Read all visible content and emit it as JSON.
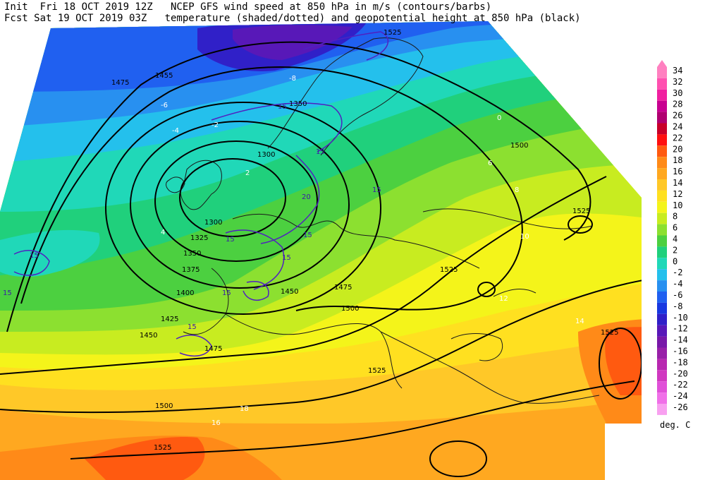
{
  "header": {
    "line1": "Init  Fri 18 OCT 2019 12Z   NCEP GFS wind speed at 850 hPa in m/s (contours/barbs)",
    "line2": "Fcst Sat 19 OCT 2019 03Z   temperature (shaded/dotted) and geopotential height at 850 hPa (black)"
  },
  "legend": {
    "unit": "deg. C",
    "levels": [
      "34",
      "32",
      "30",
      "28",
      "26",
      "24",
      "22",
      "20",
      "18",
      "16",
      "14",
      "12",
      "10",
      "8",
      "6",
      "4",
      "2",
      "0",
      "-2",
      "-4",
      "-6",
      "-8",
      "-10",
      "-12",
      "-14",
      "-16",
      "-18",
      "-20",
      "-22",
      "-24",
      "-26"
    ],
    "colors": [
      "#ff80c0",
      "#ff50b0",
      "#f020a0",
      "#c80090",
      "#b00070",
      "#c8002a",
      "#ff1010",
      "#ff5a10",
      "#ff8a18",
      "#ffa820",
      "#ffc828",
      "#ffe020",
      "#f4f41a",
      "#c8ec20",
      "#8ce030",
      "#4cd040",
      "#20d07c",
      "#20d8b8",
      "#24c0ec",
      "#2890f0",
      "#2060f0",
      "#1838e0",
      "#3020c8",
      "#5818b8",
      "#7818a8",
      "#9820a8",
      "#b828b0",
      "#d038c0",
      "#e050d8",
      "#f070e8",
      "#f8a0f0"
    ]
  },
  "height_contour_labels": [
    "1475",
    "1455",
    "1350",
    "1300",
    "1300",
    "1325",
    "1350",
    "1375",
    "1400",
    "1425",
    "1450",
    "1475",
    "1500",
    "1450",
    "1475",
    "1500",
    "1525",
    "1525",
    "1525",
    "1525",
    "1525",
    "1500",
    "1525"
  ],
  "temperature_labels": [
    "-8",
    "-6",
    "-4",
    "-2",
    "0",
    "2",
    "4",
    "6",
    "8",
    "10",
    "12",
    "14",
    "16",
    "18"
  ],
  "wind_speed_labels": [
    "15",
    "15",
    "15",
    "15",
    "15",
    "15",
    "15",
    "20",
    "15",
    "15",
    "15"
  ]
}
